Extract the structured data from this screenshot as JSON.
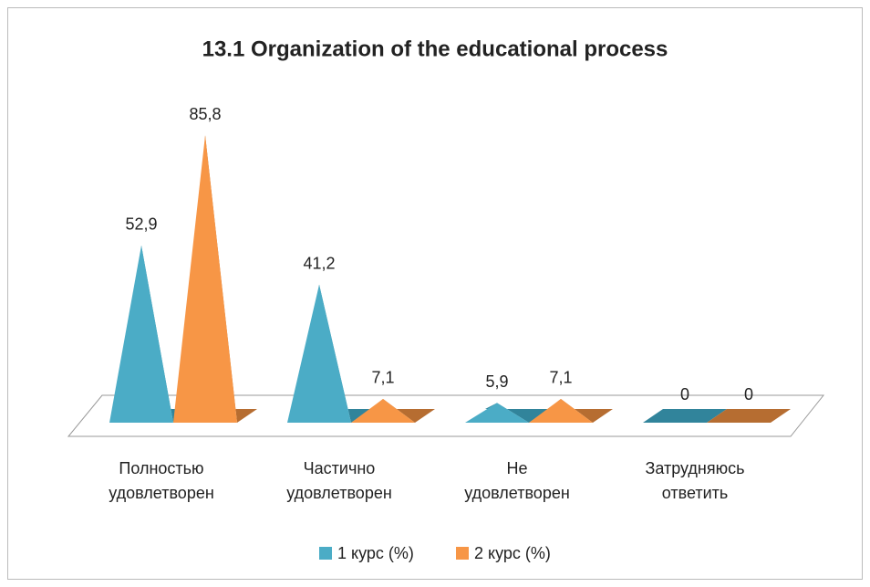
{
  "chart_data": {
    "type": "pyramid3d",
    "title": "13.1 Organization of the educational process",
    "categories": [
      "Полностью удовлетворен",
      "Частично удовлетворен",
      "Не удовлетворен",
      "Затрудняюсь ответить"
    ],
    "series": [
      {
        "name": "1 курс (%)",
        "color": "#4bacc6",
        "values": [
          52.9,
          41.2,
          5.9,
          0
        ],
        "value_labels": [
          "52,9",
          "41,2",
          "5,9",
          "0"
        ]
      },
      {
        "name": "2 курс (%)",
        "color": "#f79646",
        "values": [
          85.8,
          7.1,
          7.1,
          0
        ],
        "value_labels": [
          "85,8",
          "7,1",
          "7,1",
          "0"
        ]
      }
    ],
    "legend": "bottom"
  }
}
